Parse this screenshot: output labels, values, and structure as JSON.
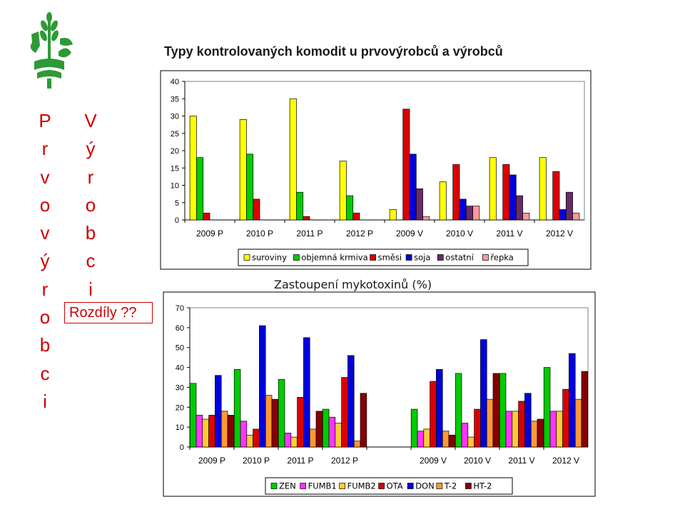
{
  "page": {
    "title": "Typy kontrolovaných komodit u prvovýrobců a výrobců",
    "vertical_left": [
      "P",
      "r",
      "v",
      "o",
      "v",
      "ý",
      "r",
      "o",
      "b",
      "c",
      "i"
    ],
    "vertical_right": [
      "V",
      "ý",
      "r",
      "o",
      "b",
      "c",
      "i"
    ],
    "differences_label": "Rozdíly ??",
    "logo": "ministry-wheat-logo-icon",
    "accent_color": "#cc0000",
    "logo_color": "#2e9a36"
  },
  "chart_data": [
    {
      "type": "bar",
      "title": "",
      "categories": [
        "2009 P",
        "2010 P",
        "2011 P",
        "2012 P",
        "2009 V",
        "2010 V",
        "2011 V",
        "2012 V"
      ],
      "ylim": [
        0,
        40
      ],
      "yticks": [
        0,
        5,
        10,
        15,
        20,
        25,
        30,
        35,
        40
      ],
      "grid": false,
      "legend_position": "bottom",
      "series": [
        {
          "name": "suroviny",
          "color": "#ffff00",
          "values": [
            30,
            29,
            35,
            17,
            3,
            11,
            18,
            18
          ]
        },
        {
          "name": "objemná krmiva",
          "color": "#00cc00",
          "values": [
            18,
            19,
            8,
            7,
            null,
            null,
            null,
            null
          ]
        },
        {
          "name": "směsi",
          "color": "#dd0000",
          "values": [
            2,
            6,
            1,
            2,
            32,
            16,
            16,
            14
          ]
        },
        {
          "name": "soja",
          "color": "#0000dd",
          "values": [
            null,
            null,
            null,
            null,
            19,
            6,
            13,
            3
          ]
        },
        {
          "name": "ostatní",
          "color": "#6a2a6a",
          "values": [
            null,
            null,
            null,
            null,
            9,
            4,
            7,
            8
          ]
        },
        {
          "name": "řepka",
          "color": "#ff9999",
          "values": [
            null,
            null,
            null,
            null,
            1,
            4,
            2,
            2
          ]
        }
      ]
    },
    {
      "type": "bar",
      "title": "Zastoupení mykotoxinů (%)",
      "categories": [
        "2009 P",
        "2010 P",
        "2011 P",
        "2012 P",
        "",
        "2009 V",
        "2010 V",
        "2011 V",
        "2012 V"
      ],
      "ylim": [
        0,
        70
      ],
      "yticks": [
        0,
        10,
        20,
        30,
        40,
        50,
        60,
        70
      ],
      "grid": false,
      "legend_position": "bottom",
      "series": [
        {
          "name": "ZEN",
          "color": "#00cc00",
          "values": [
            32,
            39,
            34,
            19,
            null,
            19,
            37,
            37,
            40
          ]
        },
        {
          "name": "FUMB1",
          "color": "#ff33ff",
          "values": [
            16,
            13,
            7,
            15,
            null,
            8,
            12,
            18,
            18
          ]
        },
        {
          "name": "FUMB2",
          "color": "#ffcc33",
          "values": [
            14,
            6,
            5,
            12,
            null,
            9,
            5,
            18,
            18
          ]
        },
        {
          "name": "OTA",
          "color": "#dd0000",
          "values": [
            16,
            9,
            25,
            35,
            null,
            33,
            19,
            23,
            29
          ]
        },
        {
          "name": "DON",
          "color": "#0000dd",
          "values": [
            36,
            61,
            55,
            46,
            null,
            39,
            54,
            27,
            47
          ]
        },
        {
          "name": "T-2",
          "color": "#ff9933",
          "values": [
            18,
            26,
            9,
            3,
            null,
            8,
            24,
            13,
            24
          ]
        },
        {
          "name": "HT-2",
          "color": "#880000",
          "values": [
            16,
            24,
            18,
            27,
            null,
            6,
            37,
            14,
            38
          ]
        }
      ]
    }
  ]
}
